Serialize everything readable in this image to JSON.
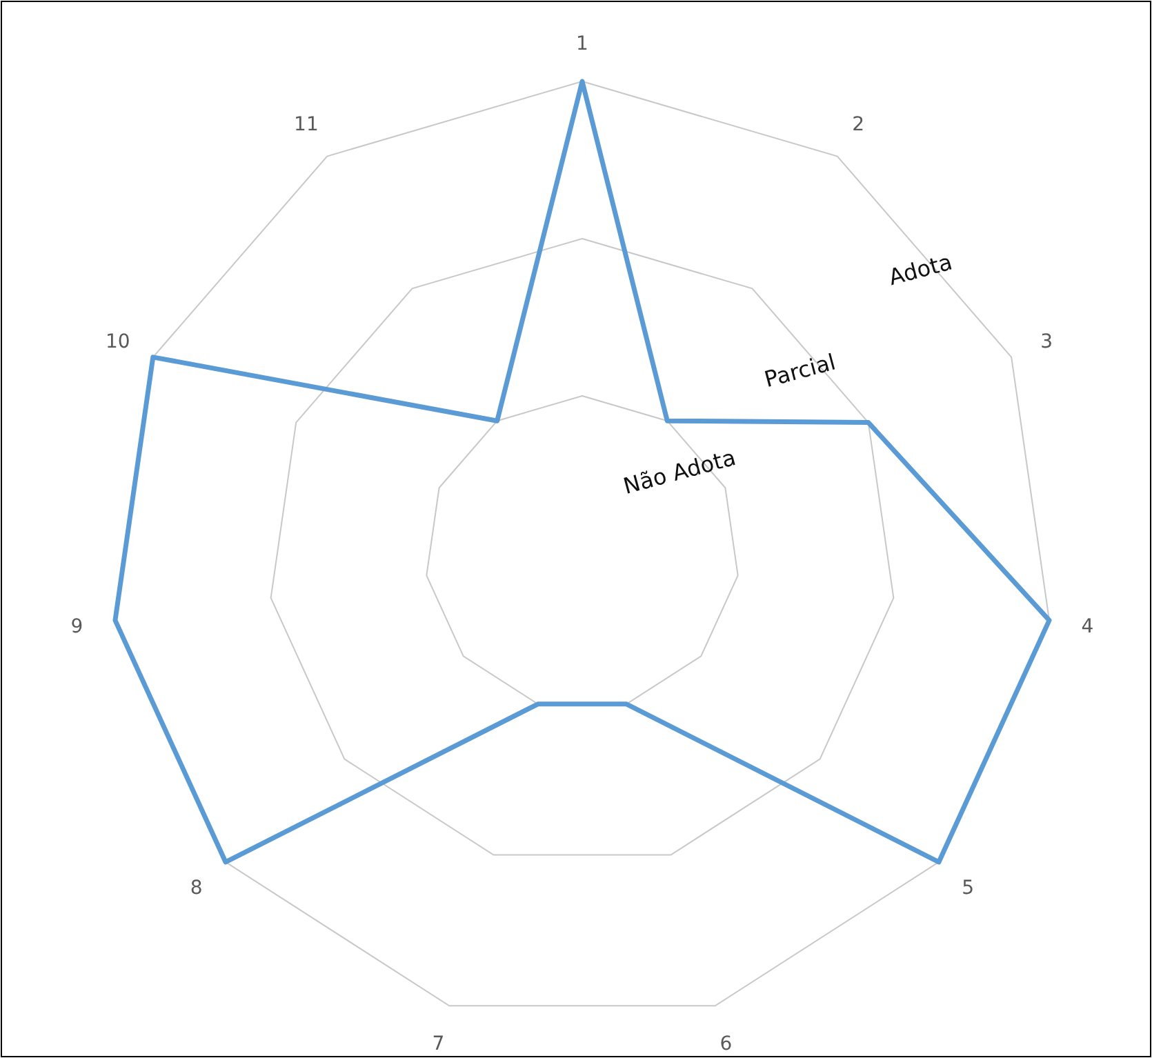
{
  "chart_data": {
    "type": "radar",
    "categories": [
      "1",
      "2",
      "3",
      "4",
      "5",
      "6",
      "7",
      "8",
      "9",
      "10",
      "11"
    ],
    "series": [
      {
        "color": "#5b9bd5",
        "values": [
          3,
          1,
          2,
          3,
          3,
          1,
          1,
          3,
          3,
          3,
          1
        ]
      }
    ],
    "ylim": [
      0,
      3
    ],
    "yticks": [
      {
        "value": 1,
        "label": "Não Adota"
      },
      {
        "value": 2,
        "label": "Parcial"
      },
      {
        "value": 3,
        "label": "Adota"
      }
    ],
    "grid": true,
    "marker": "none",
    "line_style": "solid"
  }
}
